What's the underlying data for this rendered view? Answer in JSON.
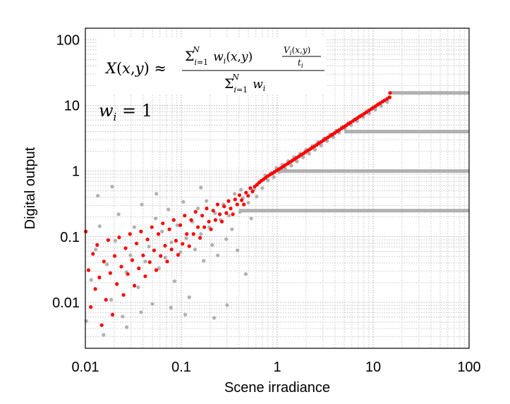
{
  "chart_data": {
    "type": "scatter",
    "title": "",
    "xlabel": "Scene irradiance",
    "ylabel": "Digital output",
    "xscale": "log",
    "yscale": "log",
    "xlim": [
      0.01,
      100
    ],
    "ylim": [
      0.002,
      150
    ],
    "grid": true,
    "x_tick_labels": [
      "0.01",
      "0.1",
      "1",
      "10",
      "100"
    ],
    "y_tick_labels": [
      "0.01",
      "0.1",
      "1",
      "10",
      "100"
    ],
    "x_ticks": [
      0.01,
      0.1,
      1,
      10,
      100
    ],
    "y_ticks": [
      0.01,
      0.1,
      1,
      10,
      100
    ],
    "annotations": {
      "formula": "X(x,y) ≈ Σ_{i=1}^{N} w_i(x,y) V_i(x,y)/t_i / Σ_{i=1}^{N} w_i",
      "weight": "w_i = 1"
    },
    "series": [
      {
        "color": "#b0b0b0",
        "points": [
          [
            0.0102,
            0.0052
          ],
          [
            0.0115,
            0.022
          ],
          [
            0.0128,
            0.064
          ],
          [
            0.0141,
            0.145
          ],
          [
            0.0155,
            0.0032
          ],
          [
            0.0168,
            0.038
          ],
          [
            0.0186,
            0.011
          ],
          [
            0.0205,
            0.087
          ],
          [
            0.0222,
            0.22
          ],
          [
            0.0245,
            0.0061
          ],
          [
            0.0268,
            0.029
          ],
          [
            0.0295,
            0.052
          ],
          [
            0.0324,
            0.14
          ],
          [
            0.0356,
            0.017
          ],
          [
            0.0388,
            0.31
          ],
          [
            0.0421,
            0.042
          ],
          [
            0.046,
            0.071
          ],
          [
            0.05,
            0.0095
          ],
          [
            0.054,
            0.19
          ],
          [
            0.0585,
            0.033
          ],
          [
            0.063,
            0.12
          ],
          [
            0.068,
            0.048
          ],
          [
            0.0735,
            0.26
          ],
          [
            0.079,
            0.082
          ],
          [
            0.085,
            0.021
          ],
          [
            0.091,
            0.15
          ],
          [
            0.098,
            0.058
          ],
          [
            0.105,
            0.34
          ],
          [
            0.113,
            0.095
          ],
          [
            0.121,
            0.012
          ],
          [
            0.13,
            0.17
          ],
          [
            0.139,
            0.064
          ],
          [
            0.149,
            0.27
          ],
          [
            0.16,
            0.11
          ],
          [
            0.171,
            0.043
          ],
          [
            0.183,
            0.35
          ],
          [
            0.196,
            0.14
          ],
          [
            0.21,
            0.075
          ],
          [
            0.225,
            0.23
          ],
          [
            0.24,
            0.052
          ],
          [
            0.257,
            0.18
          ],
          [
            0.275,
            0.31
          ],
          [
            0.294,
            0.092
          ],
          [
            0.315,
            0.21
          ],
          [
            0.337,
            0.13
          ],
          [
            0.36,
            0.45
          ],
          [
            0.385,
            0.062
          ],
          [
            0.41,
            0.24
          ],
          [
            0.44,
            0.39
          ],
          [
            0.47,
            0.027
          ],
          [
            0.5,
            0.33
          ],
          [
            0.535,
            0.19
          ],
          [
            0.57,
            0.52
          ],
          [
            0.61,
            0.41
          ],
          [
            0.65,
            0.68
          ],
          [
            0.7,
            0.55
          ],
          [
            0.75,
            0.86
          ],
          [
            0.8,
            0.72
          ],
          [
            0.86,
            0.93
          ],
          [
            0.92,
            0.81
          ],
          [
            0.98,
            1.12
          ],
          [
            1.05,
            0.97
          ],
          [
            1.13,
            1.25
          ],
          [
            1.21,
            1.08
          ],
          [
            1.3,
            1.42
          ],
          [
            1.4,
            1.21
          ],
          [
            1.5,
            1.63
          ],
          [
            1.61,
            1.4
          ],
          [
            1.73,
            1.85
          ],
          [
            1.86,
            1.62
          ],
          [
            2.0,
            2.12
          ],
          [
            2.15,
            1.85
          ],
          [
            2.31,
            2.41
          ],
          [
            2.48,
            2.11
          ],
          [
            2.67,
            2.78
          ],
          [
            2.87,
            2.45
          ],
          [
            3.08,
            3.15
          ],
          [
            3.31,
            2.86
          ],
          [
            3.56,
            3.62
          ],
          [
            3.83,
            3.3
          ],
          [
            4.11,
            4.12
          ],
          [
            4.42,
            3.85
          ],
          [
            4.75,
            4.71
          ],
          [
            5.1,
            4.42
          ],
          [
            5.48,
            5.38
          ],
          [
            5.9,
            5.05
          ],
          [
            6.34,
            6.12
          ],
          [
            6.81,
            5.81
          ],
          [
            7.32,
            6.95
          ],
          [
            7.87,
            6.66
          ],
          [
            8.46,
            7.92
          ],
          [
            9.09,
            7.61
          ],
          [
            9.77,
            9.05
          ],
          [
            10.5,
            8.62
          ],
          [
            11.3,
            10.4
          ],
          [
            12.1,
            9.85
          ],
          [
            13.0,
            11.8
          ],
          [
            14.0,
            11.3
          ],
          [
            15.0,
            13.2
          ],
          [
            0.0135,
            0.42
          ],
          [
            0.019,
            0.58
          ],
          [
            0.027,
            0.0042
          ],
          [
            0.038,
            0.0071
          ],
          [
            0.055,
            0.45
          ],
          [
            0.078,
            0.0083
          ],
          [
            0.11,
            0.0065
          ],
          [
            0.16,
            0.56
          ],
          [
            0.22,
            0.0058
          ],
          [
            0.3,
            0.0091
          ],
          [
            0.42,
            0.52
          ]
        ]
      },
      {
        "color": "#ff0000",
        "points": [
          [
            0.0101,
            0.12
          ],
          [
            0.0108,
            0.031
          ],
          [
            0.0114,
            0.0085
          ],
          [
            0.012,
            0.055
          ],
          [
            0.0127,
            0.016
          ],
          [
            0.0133,
            0.075
          ],
          [
            0.014,
            0.024
          ],
          [
            0.0148,
            0.0045
          ],
          [
            0.0156,
            0.042
          ],
          [
            0.0164,
            0.011
          ],
          [
            0.0173,
            0.089
          ],
          [
            0.0182,
            0.028
          ],
          [
            0.0192,
            0.0065
          ],
          [
            0.0202,
            0.051
          ],
          [
            0.0213,
            0.019
          ],
          [
            0.0225,
            0.098
          ],
          [
            0.0237,
            0.035
          ],
          [
            0.025,
            0.013
          ],
          [
            0.0263,
            0.067
          ],
          [
            0.0277,
            0.027
          ],
          [
            0.0292,
            0.11
          ],
          [
            0.0308,
            0.044
          ],
          [
            0.0325,
            0.018
          ],
          [
            0.0342,
            0.079
          ],
          [
            0.0361,
            0.033
          ],
          [
            0.038,
            0.12
          ],
          [
            0.04,
            0.052
          ],
          [
            0.0422,
            0.025
          ],
          [
            0.0445,
            0.091
          ],
          [
            0.0469,
            0.041
          ],
          [
            0.0494,
            0.14
          ],
          [
            0.052,
            0.062
          ],
          [
            0.0548,
            0.031
          ],
          [
            0.0578,
            0.11
          ],
          [
            0.0609,
            0.051
          ],
          [
            0.0642,
            0.16
          ],
          [
            0.0677,
            0.073
          ],
          [
            0.0713,
            0.042
          ],
          [
            0.0751,
            0.13
          ],
          [
            0.0792,
            0.064
          ],
          [
            0.0835,
            0.18
          ],
          [
            0.088,
            0.087
          ],
          [
            0.0927,
            0.053
          ],
          [
            0.0977,
            0.15
          ],
          [
            0.103,
            0.078
          ],
          [
            0.1085,
            0.21
          ],
          [
            0.114,
            0.11
          ],
          [
            0.121,
            0.072
          ],
          [
            0.127,
            0.18
          ],
          [
            0.134,
            0.11
          ],
          [
            0.141,
            0.24
          ],
          [
            0.149,
            0.14
          ],
          [
            0.157,
            0.096
          ],
          [
            0.165,
            0.21
          ],
          [
            0.174,
            0.14
          ],
          [
            0.184,
            0.27
          ],
          [
            0.194,
            0.17
          ],
          [
            0.204,
            0.13
          ],
          [
            0.215,
            0.25
          ],
          [
            0.227,
            0.18
          ],
          [
            0.239,
            0.31
          ],
          [
            0.252,
            0.22
          ],
          [
            0.265,
            0.17
          ],
          [
            0.28,
            0.29
          ],
          [
            0.295,
            0.23
          ],
          [
            0.311,
            0.35
          ],
          [
            0.327,
            0.27
          ],
          [
            0.345,
            0.22
          ],
          [
            0.364,
            0.37
          ],
          [
            0.383,
            0.31
          ],
          [
            0.404,
            0.43
          ],
          [
            0.426,
            0.36
          ],
          [
            0.449,
            0.31
          ],
          [
            0.473,
            0.47
          ],
          [
            0.498,
            0.42
          ],
          [
            0.525,
            0.55
          ],
          [
            0.553,
            0.49
          ],
          [
            0.583,
            0.58
          ],
          [
            0.615,
            0.62
          ],
          [
            0.648,
            0.67
          ],
          [
            0.683,
            0.71
          ],
          [
            0.72,
            0.75
          ],
          [
            0.758,
            0.79
          ],
          [
            0.799,
            0.84
          ],
          [
            0.842,
            0.88
          ],
          [
            0.888,
            0.92
          ],
          [
            0.935,
            0.97
          ],
          [
            0.986,
            1.02
          ],
          [
            1.04,
            1.07
          ],
          [
            1.1,
            1.12
          ],
          [
            1.16,
            1.18
          ],
          [
            1.22,
            1.24
          ],
          [
            1.29,
            1.3
          ],
          [
            1.36,
            1.37
          ],
          [
            1.43,
            1.44
          ],
          [
            1.51,
            1.51
          ],
          [
            1.59,
            1.59
          ],
          [
            1.68,
            1.67
          ],
          [
            1.77,
            1.76
          ],
          [
            1.87,
            1.85
          ],
          [
            1.97,
            1.95
          ],
          [
            2.08,
            2.05
          ],
          [
            2.2,
            2.16
          ],
          [
            2.32,
            2.27
          ],
          [
            2.45,
            2.39
          ],
          [
            2.58,
            2.52
          ],
          [
            2.72,
            2.65
          ],
          [
            2.87,
            2.79
          ],
          [
            3.03,
            2.94
          ],
          [
            3.2,
            3.1
          ],
          [
            3.38,
            3.26
          ],
          [
            3.57,
            3.44
          ],
          [
            3.77,
            3.62
          ],
          [
            3.98,
            3.81
          ],
          [
            4.2,
            4.02
          ],
          [
            4.43,
            4.23
          ],
          [
            4.68,
            4.46
          ],
          [
            4.94,
            4.69
          ],
          [
            5.22,
            4.94
          ],
          [
            5.51,
            5.21
          ],
          [
            5.82,
            5.49
          ],
          [
            6.14,
            5.78
          ],
          [
            6.49,
            6.09
          ],
          [
            6.85,
            6.42
          ],
          [
            7.23,
            6.76
          ],
          [
            7.64,
            7.12
          ],
          [
            8.07,
            7.5
          ],
          [
            8.52,
            7.9
          ],
          [
            9.0,
            8.33
          ],
          [
            9.5,
            8.77
          ],
          [
            10.0,
            9.24
          ],
          [
            10.6,
            9.73
          ],
          [
            11.2,
            10.3
          ],
          [
            11.8,
            10.8
          ],
          [
            12.5,
            11.4
          ],
          [
            13.2,
            12.0
          ],
          [
            14.0,
            12.6
          ],
          [
            14.8,
            13.3
          ],
          [
            15.0,
            15.5
          ]
        ]
      }
    ],
    "saturation_levels": [
      {
        "y": 15.5,
        "x_from": 15,
        "x_to": 100
      },
      {
        "y": 4.0,
        "x_from": 5,
        "x_to": 100
      },
      {
        "y": 1.0,
        "x_from": 1,
        "x_to": 100
      },
      {
        "y": 0.25,
        "x_from": 0.4,
        "x_to": 100
      }
    ]
  }
}
